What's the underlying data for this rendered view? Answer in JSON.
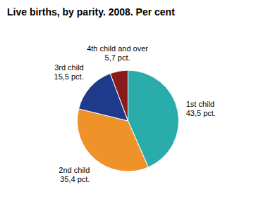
{
  "chart_data": {
    "type": "pie",
    "title": "Live births, by parity. 2008. Per cent",
    "categories": [
      "1st child",
      "2nd child",
      "3rd child",
      "4th child and over"
    ],
    "values": [
      43.5,
      35.4,
      15.5,
      5.7
    ],
    "value_labels": [
      "43,5 pct.",
      "35,4 pct.",
      "15,5 pct.",
      "5,7 pct."
    ],
    "colors": [
      "#2aacaa",
      "#f0922a",
      "#1f3a8a",
      "#8b1a1a"
    ],
    "data_labels": true
  }
}
